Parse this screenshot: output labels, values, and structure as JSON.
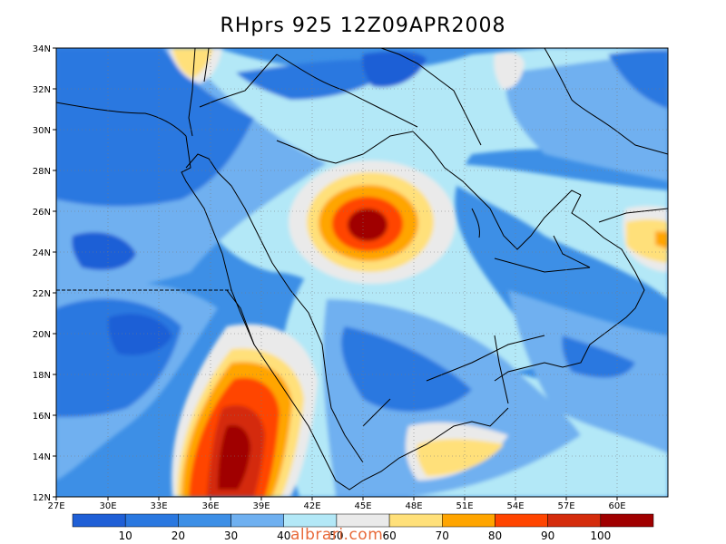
{
  "map": {
    "title": "RHprs 925 12Z09APR2008",
    "lat_labels": [
      "34N",
      "32N",
      "30N",
      "28N",
      "26N",
      "24N",
      "22N",
      "20N",
      "18N",
      "16N",
      "14N",
      "12N"
    ],
    "lon_labels": [
      "27E",
      "30E",
      "33E",
      "36E",
      "39E",
      "42E",
      "45E",
      "48E",
      "51E",
      "54E",
      "57E",
      "60E"
    ],
    "colorbar": {
      "levels": [
        "10",
        "20",
        "30",
        "40",
        "50",
        "60",
        "70",
        "80",
        "90",
        "100"
      ],
      "colors": [
        "#1f5fd6",
        "#2a78e0",
        "#3d8fe6",
        "#6fb0f0",
        "#b3e8f7",
        "#eaeaea",
        "#ffe07a",
        "#ffa500",
        "#ff4500",
        "#d42c0c",
        "#a00000"
      ]
    },
    "watermark": "albrari.com"
  }
}
